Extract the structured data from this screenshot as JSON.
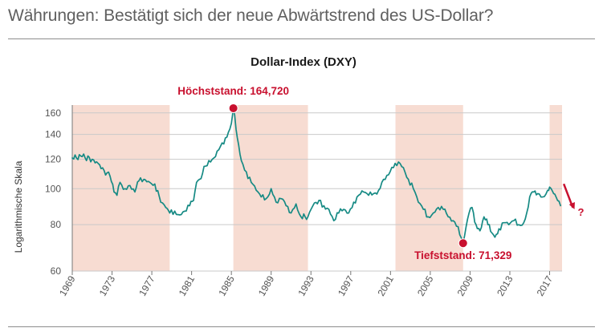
{
  "page": {
    "headline": "Währungen: Bestätigt sich der neue Abwärtstrend des US-Dollar?"
  },
  "colors": {
    "line": "#168a84",
    "shade": "#f7dcd2",
    "accent": "#c8102e",
    "text": "#555555",
    "grid": "#c9c9c9",
    "rule": "#8c8c8c"
  },
  "chart_data": {
    "type": "line",
    "title": "Dollar-Index (DXY)",
    "ylabel": "Logarithmische Skala",
    "xlabel": "",
    "x_range": [
      1969,
      2018.25
    ],
    "ylim": [
      60,
      168
    ],
    "yticks": [
      60,
      80,
      100,
      120,
      140,
      160
    ],
    "ytick_labels": [
      "60",
      "80",
      "100",
      "120",
      "140",
      "160"
    ],
    "xticks": [
      1969,
      1973,
      1977,
      1981,
      1985,
      1989,
      1993,
      1997,
      2001,
      2005,
      2009,
      2013,
      2017
    ],
    "xtick_labels": [
      "1969",
      "1973",
      "1977",
      "1981",
      "1985",
      "1989",
      "1993",
      "1997",
      "2001",
      "2005",
      "2009",
      "2013",
      "2017"
    ],
    "shaded_periods": [
      [
        1969,
        1978.8
      ],
      [
        1985.2,
        1992.7
      ],
      [
        2001.5,
        2008.3
      ],
      [
        2017.0,
        2018.25
      ]
    ],
    "series": [
      {
        "name": "DXY",
        "x": [
          1969.0,
          1970.0,
          1971.0,
          1971.6,
          1972.2,
          1972.8,
          1973.2,
          1973.5,
          1973.8,
          1974.3,
          1974.8,
          1975.3,
          1975.7,
          1976.2,
          1976.8,
          1977.3,
          1977.9,
          1978.4,
          1978.8,
          1979.3,
          1979.8,
          1980.3,
          1980.8,
          1981.2,
          1981.5,
          1981.8,
          1982.4,
          1982.9,
          1983.4,
          1983.9,
          1984.4,
          1984.7,
          1985.0,
          1985.2,
          1985.6,
          1986.0,
          1986.5,
          1987.0,
          1987.5,
          1988.0,
          1988.5,
          1989.0,
          1989.5,
          1990.0,
          1990.5,
          1991.0,
          1991.5,
          1992.0,
          1992.7,
          1993.2,
          1993.8,
          1994.3,
          1994.8,
          1995.3,
          1995.8,
          1996.3,
          1996.8,
          1997.3,
          1997.8,
          1998.3,
          1998.8,
          1999.3,
          1999.8,
          2000.3,
          2000.8,
          2001.3,
          2001.8,
          2002.3,
          2002.8,
          2003.3,
          2003.8,
          2004.3,
          2004.8,
          2005.3,
          2005.8,
          2006.3,
          2006.8,
          2007.3,
          2007.8,
          2008.3,
          2008.6,
          2008.9,
          2009.2,
          2009.6,
          2010.0,
          2010.4,
          2010.8,
          2011.2,
          2011.5,
          2011.9,
          2012.4,
          2012.9,
          2013.4,
          2013.9,
          2014.4,
          2014.7,
          2015.0,
          2015.4,
          2015.8,
          2016.3,
          2016.8,
          2017.0,
          2017.4,
          2017.8,
          2018.1
        ],
        "values": [
          121,
          122,
          120,
          117,
          112,
          108,
          98,
          96,
          104,
          100,
          102,
          98,
          105,
          106,
          104,
          103,
          92,
          89,
          86,
          87,
          85,
          87,
          90,
          93,
          104,
          106,
          115,
          118,
          122,
          130,
          137,
          142,
          150,
          164.72,
          137,
          119,
          111,
          104,
          99,
          95,
          94,
          100,
          92,
          94,
          90,
          86,
          91,
          84,
          84,
          90,
          93,
          90,
          88,
          82,
          86,
          88,
          86,
          92,
          96,
          98,
          96,
          97,
          99,
          106,
          109,
          114,
          118,
          114,
          106,
          100,
          92,
          88,
          84,
          86,
          89,
          88,
          84,
          82,
          79,
          71.329,
          79,
          86,
          89,
          80,
          77,
          84,
          80,
          76,
          74,
          78,
          81,
          80,
          82,
          80,
          81,
          86,
          95,
          98,
          97,
          95,
          99,
          101,
          97,
          93,
          90
        ]
      }
    ],
    "annotations": [
      {
        "label": "Höchststand: 164,720",
        "x": 1985.2,
        "y": 164.72,
        "position": "above"
      },
      {
        "label": "Tiefststand: 71,329",
        "x": 2008.3,
        "y": 71.329,
        "position": "below"
      },
      {
        "label": "?",
        "type": "arrow",
        "from": [
          2018.1,
          103
        ],
        "to": [
          2019.5,
          88
        ],
        "position": "right"
      }
    ]
  }
}
